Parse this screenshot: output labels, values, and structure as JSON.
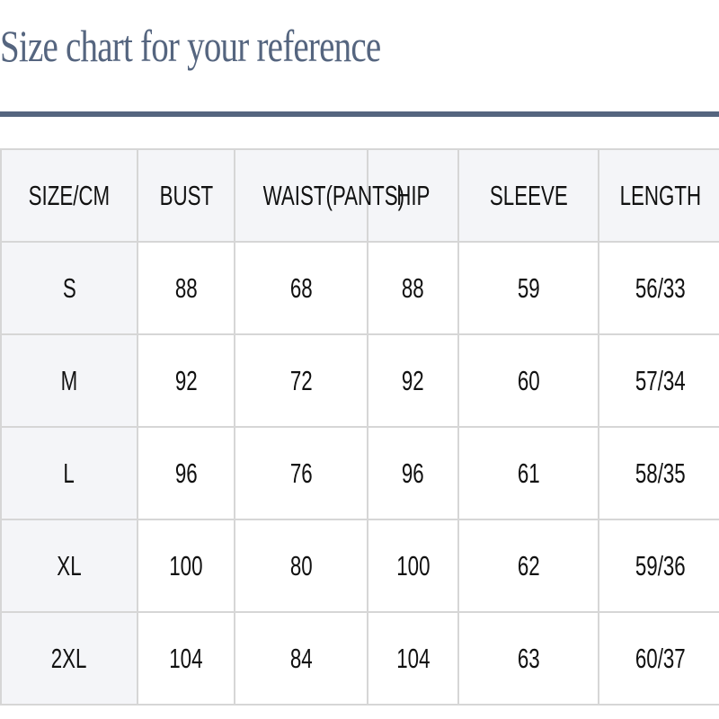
{
  "title": "Size chart for your reference",
  "table": {
    "headers": [
      "SIZE/CM",
      "BUST",
      "WAIST(PANTS)",
      "HIP",
      "SLEEVE",
      "LENGTH"
    ],
    "rows": [
      [
        "S",
        "88",
        "68",
        "88",
        "59",
        "56/33"
      ],
      [
        "M",
        "92",
        "72",
        "92",
        "60",
        "57/34"
      ],
      [
        "L",
        "96",
        "76",
        "96",
        "61",
        "58/35"
      ],
      [
        "XL",
        "100",
        "80",
        "100",
        "62",
        "59/36"
      ],
      [
        "2XL",
        "104",
        "84",
        "104",
        "63",
        "60/37"
      ]
    ]
  },
  "colors": {
    "title": "#55657f",
    "rule": "#55657f",
    "header_bg": "#f4f5f8",
    "border": "#d6d6d6"
  }
}
